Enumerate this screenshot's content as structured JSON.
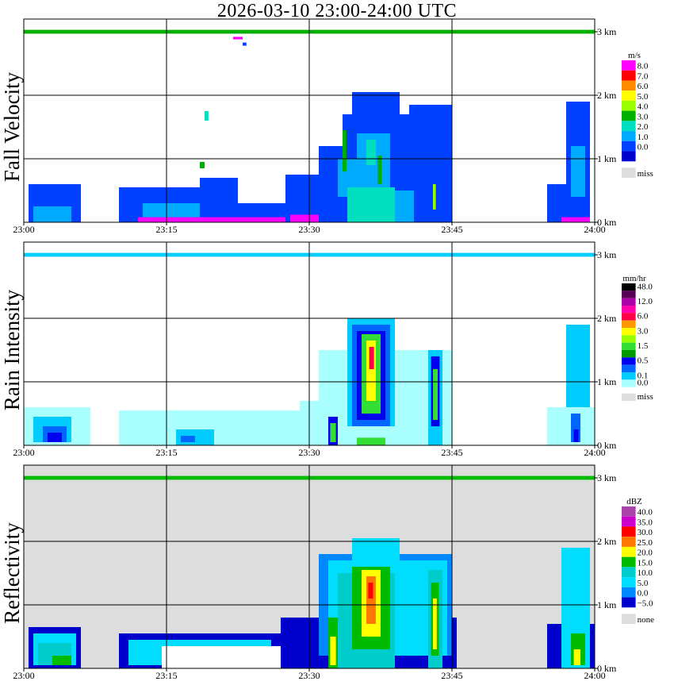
{
  "title": "2026-03-10   23:00-24:00 UTC",
  "chart_data": [
    {
      "type": "heatmap",
      "title": "Fall Velocity",
      "unit": "m/s",
      "xlabel": "",
      "ylabel": "Fall Velocity",
      "x_ticks": [
        "23:00",
        "23:15",
        "23:30",
        "23:45",
        "24:00"
      ],
      "y_ticks": [
        "0 km",
        "1 km",
        "2 km",
        "3 km"
      ],
      "xlim": [
        "23:00",
        "24:00"
      ],
      "ylim": [
        0,
        3.2
      ],
      "background": "#ffffff",
      "legend": [
        {
          "label": "8.0",
          "color": "#ff00ff"
        },
        {
          "label": "7.0",
          "color": "#ff0000"
        },
        {
          "label": "6.0",
          "color": "#ff8c00"
        },
        {
          "label": "5.0",
          "color": "#ffff00"
        },
        {
          "label": "4.0",
          "color": "#99ff00"
        },
        {
          "label": "3.0",
          "color": "#00b000"
        },
        {
          "label": "2.0",
          "color": "#00e0c0"
        },
        {
          "label": "1.0",
          "color": "#00aaff"
        },
        {
          "label": "0.0",
          "color": "#0040ff"
        },
        {
          "label": "",
          "color": "#0000cc"
        },
        {
          "label": "miss",
          "color": "#dddddd"
        }
      ],
      "cells": [
        {
          "t0": 0.5,
          "t1": 6.0,
          "h0": 0.0,
          "h1": 0.6,
          "color": "#0040ff"
        },
        {
          "t0": 1.0,
          "t1": 5.0,
          "h0": 0.0,
          "h1": 0.25,
          "color": "#00aaff"
        },
        {
          "t0": 10.0,
          "t1": 21.0,
          "h0": 0.0,
          "h1": 0.55,
          "color": "#0040ff"
        },
        {
          "t0": 12.5,
          "t1": 20.0,
          "h0": 0.0,
          "h1": 0.3,
          "color": "#00aaff"
        },
        {
          "t0": 18.5,
          "t1": 22.5,
          "h0": 0.0,
          "h1": 0.7,
          "color": "#0040ff"
        },
        {
          "t0": 22.5,
          "t1": 28.0,
          "h0": 0.0,
          "h1": 0.3,
          "color": "#0040ff"
        },
        {
          "t0": 12.0,
          "t1": 28.0,
          "h0": 0.0,
          "h1": 0.08,
          "color": "#ff00ff"
        },
        {
          "t0": 19.0,
          "t1": 19.4,
          "h0": 1.6,
          "h1": 1.75,
          "color": "#00e0c0"
        },
        {
          "t0": 18.5,
          "t1": 19.0,
          "h0": 0.85,
          "h1": 0.95,
          "color": "#00b000"
        },
        {
          "t0": 27.5,
          "t1": 37.0,
          "h0": 0.0,
          "h1": 0.75,
          "color": "#0040ff"
        },
        {
          "t0": 31.0,
          "t1": 45.0,
          "h0": 0.0,
          "h1": 1.2,
          "color": "#0040ff"
        },
        {
          "t0": 33.5,
          "t1": 45.0,
          "h0": 0.2,
          "h1": 1.7,
          "color": "#0040ff"
        },
        {
          "t0": 34.5,
          "t1": 39.5,
          "h0": 1.0,
          "h1": 2.05,
          "color": "#0040ff"
        },
        {
          "t0": 40.5,
          "t1": 45.0,
          "h0": 1.0,
          "h1": 1.85,
          "color": "#0040ff"
        },
        {
          "t0": 33.0,
          "t1": 38.5,
          "h0": 0.4,
          "h1": 1.0,
          "color": "#00aaff"
        },
        {
          "t0": 35.0,
          "t1": 38.5,
          "h0": 0.9,
          "h1": 1.4,
          "color": "#00aaff"
        },
        {
          "t0": 34.0,
          "t1": 39.0,
          "h0": 0.0,
          "h1": 0.55,
          "color": "#00e0c0"
        },
        {
          "t0": 36.0,
          "t1": 37.0,
          "h0": 0.9,
          "h1": 1.3,
          "color": "#00e0c0"
        },
        {
          "t0": 33.5,
          "t1": 33.9,
          "h0": 0.8,
          "h1": 1.45,
          "color": "#00b000"
        },
        {
          "t0": 37.2,
          "t1": 37.6,
          "h0": 0.6,
          "h1": 1.05,
          "color": "#00b000"
        },
        {
          "t0": 43.0,
          "t1": 43.3,
          "h0": 0.2,
          "h1": 0.6,
          "color": "#99ff00"
        },
        {
          "t0": 39.0,
          "t1": 41.0,
          "h0": 0.0,
          "h1": 0.5,
          "color": "#00aaff"
        },
        {
          "t0": 28.0,
          "t1": 31.0,
          "h0": 0.0,
          "h1": 0.12,
          "color": "#ff00ff"
        },
        {
          "t0": 55.0,
          "t1": 59.5,
          "h0": 0.0,
          "h1": 0.6,
          "color": "#0040ff"
        },
        {
          "t0": 57.0,
          "t1": 59.5,
          "h0": 0.6,
          "h1": 1.9,
          "color": "#0040ff"
        },
        {
          "t0": 57.5,
          "t1": 59.0,
          "h0": 0.4,
          "h1": 1.2,
          "color": "#00aaff"
        },
        {
          "t0": 56.5,
          "t1": 59.5,
          "h0": 0.0,
          "h1": 0.08,
          "color": "#ff00ff"
        },
        {
          "t0": 0.0,
          "t1": 60.0,
          "h0": 2.97,
          "h1": 3.03,
          "color": "#00b000"
        },
        {
          "t0": 22.0,
          "t1": 23.0,
          "h0": 2.88,
          "h1": 2.92,
          "color": "#ff00ff"
        },
        {
          "t0": 23.0,
          "t1": 23.4,
          "h0": 2.78,
          "h1": 2.83,
          "color": "#0040ff"
        }
      ]
    },
    {
      "type": "heatmap",
      "title": "Rain Intensity",
      "unit": "mm/hr",
      "xlabel": "",
      "ylabel": "Rain Intensity",
      "x_ticks": [
        "23:00",
        "23:15",
        "23:30",
        "23:45",
        "24:00"
      ],
      "y_ticks": [
        "0 km",
        "1 km",
        "2 km",
        "3 km"
      ],
      "xlim": [
        "23:00",
        "24:00"
      ],
      "ylim": [
        0,
        3.2
      ],
      "background": "#ffffff",
      "legend": [
        {
          "label": "48.0",
          "color": "#000000"
        },
        {
          "label": "",
          "color": "#550055"
        },
        {
          "label": "12.0",
          "color": "#aa00aa"
        },
        {
          "label": "",
          "color": "#ff00aa"
        },
        {
          "label": "6.0",
          "color": "#ff0044"
        },
        {
          "label": "",
          "color": "#ff9900"
        },
        {
          "label": "3.0",
          "color": "#ffff00"
        },
        {
          "label": "",
          "color": "#99ff00"
        },
        {
          "label": "1.5",
          "color": "#33dd33"
        },
        {
          "label": "",
          "color": "#009900"
        },
        {
          "label": "0.5",
          "color": "#0000ee"
        },
        {
          "label": "",
          "color": "#0066ff"
        },
        {
          "label": "0.1",
          "color": "#00ccff"
        },
        {
          "label": "0.0",
          "color": "#aaffff"
        },
        {
          "label": "miss",
          "color": "#dddddd"
        }
      ],
      "cells": [
        {
          "t0": 0.0,
          "t1": 7.0,
          "h0": 0.0,
          "h1": 0.6,
          "color": "#aaffff"
        },
        {
          "t0": 1.0,
          "t1": 5.0,
          "h0": 0.05,
          "h1": 0.45,
          "color": "#00ccff"
        },
        {
          "t0": 2.0,
          "t1": 4.5,
          "h0": 0.05,
          "h1": 0.3,
          "color": "#0066ff"
        },
        {
          "t0": 2.5,
          "t1": 4.0,
          "h0": 0.05,
          "h1": 0.2,
          "color": "#0000ee"
        },
        {
          "t0": 10.0,
          "t1": 29.0,
          "h0": 0.0,
          "h1": 0.55,
          "color": "#aaffff"
        },
        {
          "t0": 16.0,
          "t1": 20.0,
          "h0": 0.0,
          "h1": 0.25,
          "color": "#00ccff"
        },
        {
          "t0": 16.5,
          "t1": 18.0,
          "h0": 0.05,
          "h1": 0.15,
          "color": "#0066ff"
        },
        {
          "t0": 29.0,
          "t1": 45.0,
          "h0": 0.0,
          "h1": 0.7,
          "color": "#aaffff"
        },
        {
          "t0": 31.0,
          "t1": 45.0,
          "h0": 0.2,
          "h1": 1.5,
          "color": "#aaffff"
        },
        {
          "t0": 34.0,
          "t1": 39.0,
          "h0": 0.3,
          "h1": 2.0,
          "color": "#00ccff"
        },
        {
          "t0": 34.5,
          "t1": 38.5,
          "h0": 0.3,
          "h1": 1.9,
          "color": "#0066ff"
        },
        {
          "t0": 35.0,
          "t1": 38.0,
          "h0": 0.4,
          "h1": 1.8,
          "color": "#0000ee"
        },
        {
          "t0": 35.5,
          "t1": 37.5,
          "h0": 0.5,
          "h1": 1.75,
          "color": "#33dd33"
        },
        {
          "t0": 36.0,
          "t1": 37.0,
          "h0": 0.7,
          "h1": 1.65,
          "color": "#ffff00"
        },
        {
          "t0": 36.3,
          "t1": 36.8,
          "h0": 1.2,
          "h1": 1.55,
          "color": "#ff0044"
        },
        {
          "t0": 32.0,
          "t1": 33.0,
          "h0": 0.0,
          "h1": 0.45,
          "color": "#0000ee"
        },
        {
          "t0": 32.2,
          "t1": 32.8,
          "h0": 0.05,
          "h1": 0.35,
          "color": "#33dd33"
        },
        {
          "t0": 35.0,
          "t1": 38.0,
          "h0": 0.0,
          "h1": 0.12,
          "color": "#33dd33"
        },
        {
          "t0": 42.5,
          "t1": 44.0,
          "h0": 0.0,
          "h1": 1.5,
          "color": "#00ccff"
        },
        {
          "t0": 42.8,
          "t1": 43.7,
          "h0": 0.3,
          "h1": 1.4,
          "color": "#0000ee"
        },
        {
          "t0": 43.0,
          "t1": 43.5,
          "h0": 0.4,
          "h1": 1.2,
          "color": "#33dd33"
        },
        {
          "t0": 55.0,
          "t1": 60.0,
          "h0": 0.0,
          "h1": 0.6,
          "color": "#aaffff"
        },
        {
          "t0": 57.0,
          "t1": 59.5,
          "h0": 0.6,
          "h1": 1.9,
          "color": "#00ccff"
        },
        {
          "t0": 57.5,
          "t1": 58.5,
          "h0": 0.05,
          "h1": 0.5,
          "color": "#0066ff"
        },
        {
          "t0": 57.8,
          "t1": 58.3,
          "h0": 0.05,
          "h1": 0.25,
          "color": "#0000ee"
        },
        {
          "t0": 0.0,
          "t1": 60.0,
          "h0": 2.97,
          "h1": 3.03,
          "color": "#00ccff"
        }
      ]
    },
    {
      "type": "heatmap",
      "title": "Reflectivity",
      "unit": "dBZ",
      "xlabel": "",
      "ylabel": "Reflectivity",
      "x_ticks": [
        "23:00",
        "23:15",
        "23:30",
        "23:45",
        "24:00"
      ],
      "y_ticks": [
        "0 km",
        "1 km",
        "2 km",
        "3 km"
      ],
      "xlim": [
        "23:00",
        "24:00"
      ],
      "ylim": [
        0,
        3.2
      ],
      "background": "#dddddd",
      "legend": [
        {
          "label": "40.0",
          "color": "#aa44aa"
        },
        {
          "label": "35.0",
          "color": "#cc00cc"
        },
        {
          "label": "30.0",
          "color": "#ff0000"
        },
        {
          "label": "25.0",
          "color": "#ff7700"
        },
        {
          "label": "20.0",
          "color": "#ffff00"
        },
        {
          "label": "15.0",
          "color": "#00bb00"
        },
        {
          "label": "10.0",
          "color": "#00cccc"
        },
        {
          "label": "5.0",
          "color": "#00ddff"
        },
        {
          "label": "0.0",
          "color": "#0088ff"
        },
        {
          "label": "−5.0",
          "color": "#0000cc"
        },
        {
          "label": "none",
          "color": "#dddddd"
        }
      ],
      "cells": [
        {
          "t0": 0.5,
          "t1": 6.0,
          "h0": 0.0,
          "h1": 0.65,
          "color": "#0000cc"
        },
        {
          "t0": 1.0,
          "t1": 5.5,
          "h0": 0.05,
          "h1": 0.55,
          "color": "#00ddff"
        },
        {
          "t0": 1.5,
          "t1": 5.0,
          "h0": 0.05,
          "h1": 0.4,
          "color": "#00cccc"
        },
        {
          "t0": 3.0,
          "t1": 5.0,
          "h0": 0.05,
          "h1": 0.2,
          "color": "#00bb00"
        },
        {
          "t0": 10.0,
          "t1": 27.0,
          "h0": 0.0,
          "h1": 0.55,
          "color": "#0000cc"
        },
        {
          "t0": 11.0,
          "t1": 26.0,
          "h0": 0.05,
          "h1": 0.45,
          "color": "#00ddff"
        },
        {
          "t0": 16.0,
          "t1": 20.0,
          "h0": 0.05,
          "h1": 0.3,
          "color": "#00cccc"
        },
        {
          "t0": 14.5,
          "t1": 27.0,
          "h0": 0.0,
          "h1": 0.35,
          "color": "#ffffff"
        },
        {
          "t0": 27.0,
          "t1": 45.5,
          "h0": 0.0,
          "h1": 0.8,
          "color": "#0000cc"
        },
        {
          "t0": 31.0,
          "t1": 45.0,
          "h0": 0.2,
          "h1": 1.8,
          "color": "#0088ff"
        },
        {
          "t0": 32.0,
          "t1": 44.5,
          "h0": 0.2,
          "h1": 1.7,
          "color": "#00ddff"
        },
        {
          "t0": 34.5,
          "t1": 39.5,
          "h0": 0.3,
          "h1": 2.05,
          "color": "#00ddff"
        },
        {
          "t0": 33.0,
          "t1": 39.0,
          "h0": 0.0,
          "h1": 1.5,
          "color": "#00cccc"
        },
        {
          "t0": 34.5,
          "t1": 38.5,
          "h0": 0.3,
          "h1": 1.6,
          "color": "#00bb00"
        },
        {
          "t0": 35.5,
          "t1": 37.5,
          "h0": 0.5,
          "h1": 1.55,
          "color": "#ffff00"
        },
        {
          "t0": 36.0,
          "t1": 37.0,
          "h0": 0.7,
          "h1": 1.45,
          "color": "#ff7700"
        },
        {
          "t0": 36.2,
          "t1": 36.7,
          "h0": 1.1,
          "h1": 1.35,
          "color": "#ff0000"
        },
        {
          "t0": 32.0,
          "t1": 33.0,
          "h0": 0.0,
          "h1": 0.8,
          "color": "#00bb00"
        },
        {
          "t0": 32.2,
          "t1": 32.8,
          "h0": 0.05,
          "h1": 0.5,
          "color": "#ffff00"
        },
        {
          "t0": 42.5,
          "t1": 44.0,
          "h0": 0.0,
          "h1": 1.55,
          "color": "#00cccc"
        },
        {
          "t0": 42.8,
          "t1": 43.6,
          "h0": 0.2,
          "h1": 1.35,
          "color": "#00bb00"
        },
        {
          "t0": 43.0,
          "t1": 43.4,
          "h0": 0.3,
          "h1": 1.1,
          "color": "#ffff00"
        },
        {
          "t0": 55.0,
          "t1": 60.0,
          "h0": 0.0,
          "h1": 0.7,
          "color": "#0000cc"
        },
        {
          "t0": 56.5,
          "t1": 59.5,
          "h0": 0.0,
          "h1": 1.9,
          "color": "#00ddff"
        },
        {
          "t0": 57.5,
          "t1": 59.0,
          "h0": 0.05,
          "h1": 0.55,
          "color": "#00bb00"
        },
        {
          "t0": 57.8,
          "t1": 58.5,
          "h0": 0.05,
          "h1": 0.3,
          "color": "#ffff00"
        },
        {
          "t0": 0.0,
          "t1": 60.0,
          "h0": 2.97,
          "h1": 3.03,
          "color": "#00bb00"
        }
      ]
    }
  ]
}
